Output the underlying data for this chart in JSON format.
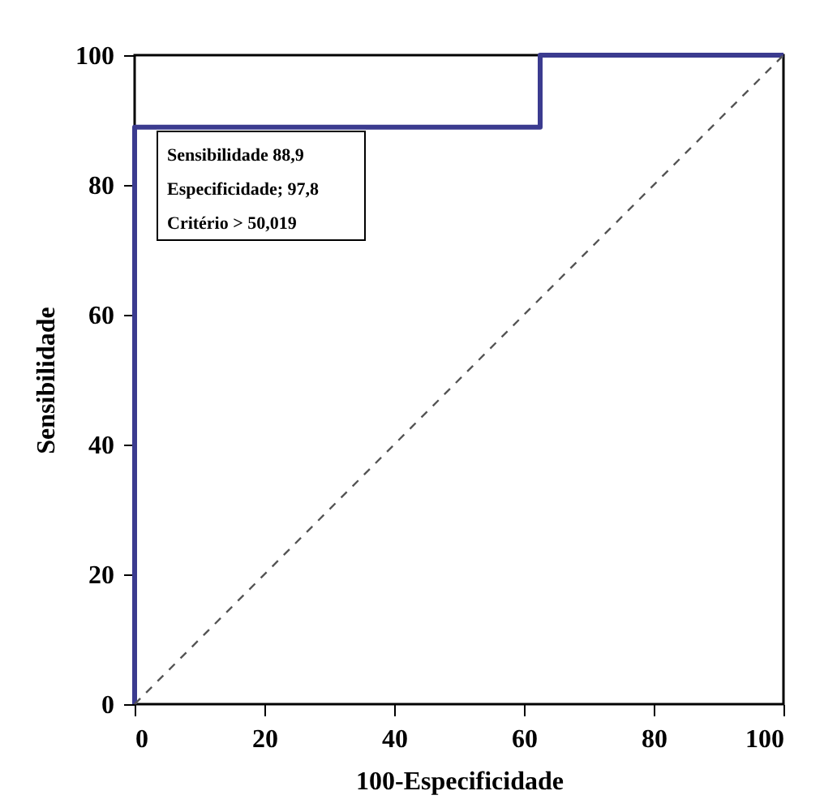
{
  "chart_data": {
    "type": "line",
    "xlabel": "100-Especificidade",
    "ylabel": "Sensibilidade",
    "xlim": [
      0,
      100
    ],
    "ylim": [
      0,
      100
    ],
    "xticks": [
      0,
      20,
      40,
      60,
      80,
      100
    ],
    "yticks": [
      0,
      20,
      40,
      60,
      80,
      100
    ],
    "grid": false,
    "marker": "none",
    "series": [
      {
        "color": "#3b3b8f",
        "line_style": "solid",
        "x": [
          0,
          0,
          62.5,
          62.5,
          100
        ],
        "values": [
          0,
          88.9,
          88.9,
          100,
          100
        ]
      },
      {
        "color": "#555555",
        "line_style": "dashed",
        "x": [
          0,
          100
        ],
        "values": [
          0,
          100
        ]
      }
    ],
    "annotations": [
      "Sensibilidade  88,9",
      "Especificidade;  97,8",
      "Critério  > 50,019"
    ]
  }
}
